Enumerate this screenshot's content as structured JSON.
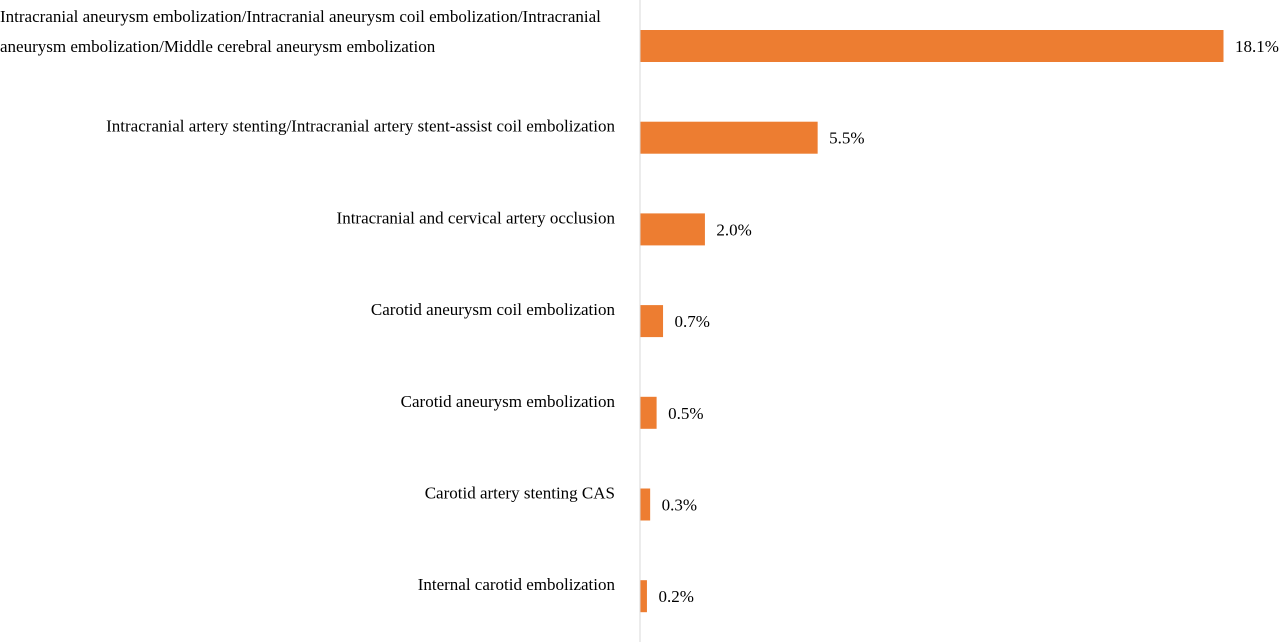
{
  "chart_data": {
    "type": "bar",
    "orientation": "horizontal",
    "categories": [
      "Intracranial aneurysm embolization/Intracranial aneurysm coil embolization/Intracranial aneurysm embolization/Middle cerebral aneurysm embolization",
      "Intracranial artery stenting/Intracranial artery stent-assist coil embolization",
      "Intracranial and cervical artery occlusion",
      "Carotid aneurysm coil embolization",
      "Carotid aneurysm embolization",
      "Carotid artery stenting CAS",
      "Internal carotid embolization"
    ],
    "category_lines": [
      [
        "Intracranial aneurysm embolization/Intracranial aneurysm coil embolization/Intracranial",
        "aneurysm embolization/Middle cerebral aneurysm embolization"
      ],
      [
        "Intracranial artery stenting/Intracranial artery stent-assist coil embolization"
      ],
      [
        "Intracranial and cervical artery occlusion"
      ],
      [
        "Carotid aneurysm coil embolization"
      ],
      [
        "Carotid aneurysm embolization"
      ],
      [
        "Carotid artery stenting CAS"
      ],
      [
        "Internal carotid embolization"
      ]
    ],
    "values": [
      18.1,
      5.5,
      2.0,
      0.7,
      0.5,
      0.3,
      0.2
    ],
    "data_labels": [
      "18.1%",
      "5.5%",
      "2.0%",
      "0.7%",
      "0.5%",
      "0.3%",
      "0.2%"
    ],
    "title": "",
    "xlabel": "",
    "ylabel": "",
    "xlim": [
      0,
      18.1
    ],
    "bar_color": "#ED7D31",
    "axis_color": "#D9D9D9",
    "grid": false,
    "legend": "none"
  }
}
